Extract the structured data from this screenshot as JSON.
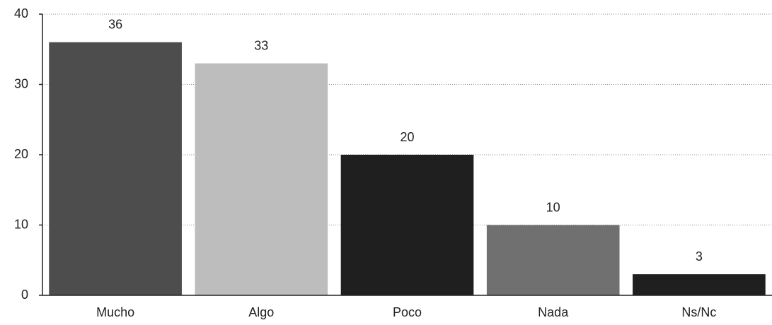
{
  "chart_data": {
    "type": "bar",
    "categories": [
      "Mucho",
      "Algo",
      "Poco",
      "Nada",
      "Ns/Nc"
    ],
    "values": [
      36,
      33,
      20,
      10,
      3
    ],
    "colors": [
      "#4d4d4d",
      "#bdbdbd",
      "#1f1f1f",
      "#707070",
      "#1f1f1f"
    ],
    "ylim": [
      0,
      40
    ],
    "yticks": [
      0,
      10,
      20,
      30,
      40
    ],
    "grid": true,
    "show_value_labels": true
  }
}
